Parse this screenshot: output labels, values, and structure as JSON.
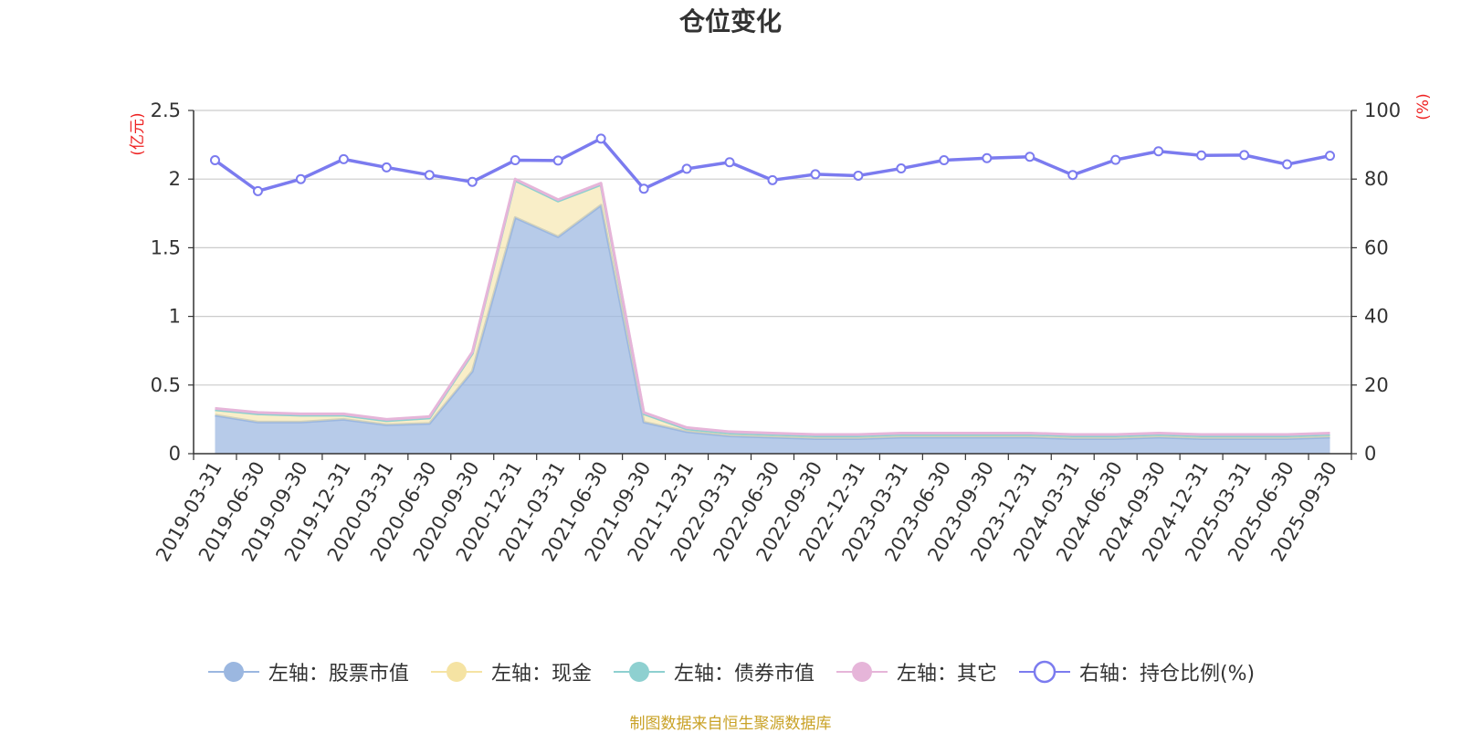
{
  "chart_data": {
    "type": "area",
    "title": "仓位变化",
    "left_axis_label": "(亿元)",
    "right_axis_label": "(%)",
    "y_left_lim": [
      0,
      2.5
    ],
    "y_left_ticks": [
      "0",
      "0.5",
      "1",
      "1.5",
      "2",
      "2.5"
    ],
    "y_right_lim": [
      0,
      100
    ],
    "y_right_ticks": [
      "0",
      "20",
      "40",
      "60",
      "80",
      "100"
    ],
    "grid": true,
    "legend_position": "bottom",
    "categories": [
      "2019-03-31",
      "2019-06-30",
      "2019-09-30",
      "2019-12-31",
      "2020-03-31",
      "2020-06-30",
      "2020-09-30",
      "2020-12-31",
      "2021-03-31",
      "2021-06-30",
      "2021-09-30",
      "2021-12-31",
      "2022-03-31",
      "2022-06-30",
      "2022-09-30",
      "2022-12-31",
      "2023-03-31",
      "2023-06-30",
      "2023-09-30",
      "2023-12-31",
      "2024-03-31",
      "2024-06-30",
      "2024-09-30",
      "2024-12-31",
      "2025-03-31",
      "2025-06-30",
      "2025-09-30"
    ],
    "series": [
      {
        "name": "左轴：股票市值",
        "axis": "left",
        "stack": true,
        "color": "#9bb7e0",
        "values": [
          0.28,
          0.23,
          0.23,
          0.25,
          0.21,
          0.22,
          0.6,
          1.72,
          1.58,
          1.81,
          0.23,
          0.16,
          0.13,
          0.12,
          0.11,
          0.11,
          0.12,
          0.12,
          0.12,
          0.12,
          0.11,
          0.11,
          0.12,
          0.11,
          0.11,
          0.11,
          0.12
        ]
      },
      {
        "name": "左轴：现金",
        "axis": "left",
        "stack": true,
        "color": "#f5e3a3",
        "values": [
          0.04,
          0.06,
          0.05,
          0.03,
          0.03,
          0.04,
          0.13,
          0.27,
          0.26,
          0.15,
          0.06,
          0.02,
          0.02,
          0.02,
          0.02,
          0.02,
          0.02,
          0.02,
          0.02,
          0.02,
          0.02,
          0.02,
          0.02,
          0.02,
          0.02,
          0.02,
          0.02
        ]
      },
      {
        "name": "左轴：债券市值",
        "axis": "left",
        "stack": true,
        "color": "#8ed0d0",
        "values": [
          0,
          0,
          0,
          0,
          0,
          0,
          0,
          0,
          0,
          0,
          0,
          0,
          0,
          0,
          0,
          0,
          0,
          0,
          0,
          0,
          0,
          0,
          0,
          0,
          0,
          0,
          0
        ]
      },
      {
        "name": "左轴：其它",
        "axis": "left",
        "stack": true,
        "color": "#e6b5d9",
        "values": [
          0.01,
          0.01,
          0.01,
          0.01,
          0.01,
          0.01,
          0.01,
          0.01,
          0.01,
          0.01,
          0.01,
          0.01,
          0.01,
          0.01,
          0.01,
          0.01,
          0.01,
          0.01,
          0.01,
          0.01,
          0.01,
          0.01,
          0.01,
          0.01,
          0.01,
          0.01,
          0.01
        ]
      },
      {
        "name": "右轴：持仓比例(%)",
        "axis": "right",
        "stack": false,
        "color": "#7b7bef",
        "values": [
          85.5,
          76.5,
          80.0,
          85.8,
          83.4,
          81.2,
          79.2,
          85.5,
          85.4,
          91.8,
          77.2,
          83.0,
          84.9,
          79.7,
          81.4,
          81.0,
          83.1,
          85.5,
          86.1,
          86.5,
          81.2,
          85.6,
          88.1,
          86.9,
          87.0,
          84.3,
          86.8
        ]
      }
    ]
  },
  "footer": {
    "source_note": "制图数据来自恒生聚源数据库"
  }
}
